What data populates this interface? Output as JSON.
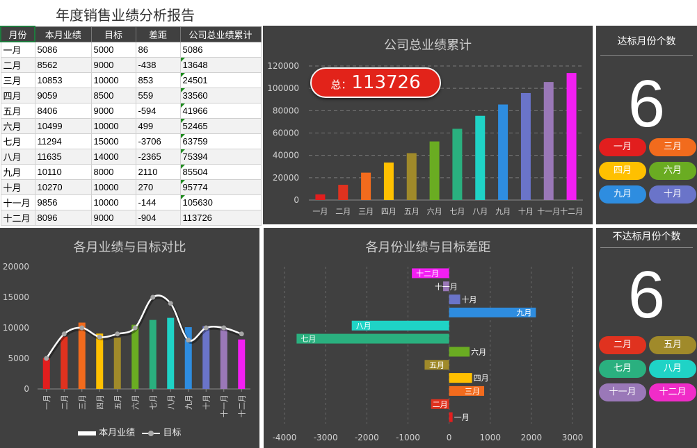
{
  "page_title": "年度销售业绩分析报告",
  "table": {
    "headers": [
      "月份",
      "本月业绩",
      "目标",
      "差距",
      "公司总业绩累计"
    ],
    "rows": [
      [
        "一月",
        "5086",
        "5000",
        "86",
        "5086"
      ],
      [
        "二月",
        "8562",
        "9000",
        "-438",
        "13648"
      ],
      [
        "三月",
        "10853",
        "10000",
        "853",
        "24501"
      ],
      [
        "四月",
        "9059",
        "8500",
        "559",
        "33560"
      ],
      [
        "五月",
        "8406",
        "9000",
        "-594",
        "41966"
      ],
      [
        "六月",
        "10499",
        "10000",
        "499",
        "52465"
      ],
      [
        "七月",
        "11294",
        "15000",
        "-3706",
        "63759"
      ],
      [
        "八月",
        "11635",
        "14000",
        "-2365",
        "75394"
      ],
      [
        "九月",
        "10110",
        "8000",
        "2110",
        "85504"
      ],
      [
        "十月",
        "10270",
        "10000",
        "270",
        "95774"
      ],
      [
        "十一月",
        "9856",
        "10000",
        "-144",
        "105630"
      ],
      [
        "十二月",
        "8096",
        "9000",
        "-904",
        "113726"
      ]
    ]
  },
  "cumulative_panel": {
    "title": "公司总业绩累计",
    "total_label": "总：",
    "total_value": "113726"
  },
  "compare_panel": {
    "title": "各月业绩与目标对比",
    "legend_bar": "本月业绩",
    "legend_line": "目标"
  },
  "gap_panel": {
    "title": "各月份业绩与目标差距"
  },
  "achieved": {
    "title": "达标月份个数",
    "count": "6",
    "months": [
      {
        "label": "一月",
        "color": "#e21e1e"
      },
      {
        "label": "三月",
        "color": "#f26b1d"
      },
      {
        "label": "四月",
        "color": "#ffc000"
      },
      {
        "label": "六月",
        "color": "#6aac22"
      },
      {
        "label": "九月",
        "color": "#2e8de0"
      },
      {
        "label": "十月",
        "color": "#6a74c9"
      }
    ]
  },
  "missed": {
    "title": "不达标月份个数",
    "count": "6",
    "months": [
      {
        "label": "二月",
        "color": "#e0321f"
      },
      {
        "label": "五月",
        "color": "#a08a2a"
      },
      {
        "label": "七月",
        "color": "#2ab07f"
      },
      {
        "label": "八月",
        "color": "#1fd3c6"
      },
      {
        "label": "十一月",
        "color": "#9a78b8"
      },
      {
        "label": "十二月",
        "color": "#f02cc8"
      }
    ]
  },
  "colors": [
    "#e21e1e",
    "#e0321f",
    "#f26b1d",
    "#ffc000",
    "#a08a2a",
    "#6aac22",
    "#2ab07f",
    "#1fd3c6",
    "#2e8de0",
    "#6a74c9",
    "#9a78b8",
    "#f21ff2"
  ],
  "chart_data": [
    {
      "type": "bar",
      "title": "公司总业绩累计",
      "categories": [
        "一月",
        "二月",
        "三月",
        "四月",
        "五月",
        "六月",
        "七月",
        "八月",
        "九月",
        "十月",
        "十一月",
        "十二月"
      ],
      "values": [
        5086,
        13648,
        24501,
        33560,
        41966,
        52465,
        63759,
        75394,
        85504,
        95774,
        105630,
        113726
      ],
      "y_ticks": [
        "0",
        "20000",
        "40000",
        "60000",
        "80000",
        "100000",
        "120000"
      ],
      "ylim": [
        0,
        120000
      ]
    },
    {
      "type": "bar",
      "title": "各月业绩与目标对比",
      "categories": [
        "一月",
        "二月",
        "三月",
        "四月",
        "五月",
        "六月",
        "七月",
        "八月",
        "九月",
        "十月",
        "十一月",
        "十二月"
      ],
      "series": [
        {
          "name": "本月业绩",
          "type": "bar",
          "values": [
            5086,
            8562,
            10853,
            9059,
            8406,
            10499,
            11294,
            11635,
            10110,
            10270,
            9856,
            8096
          ]
        },
        {
          "name": "目标",
          "type": "line",
          "values": [
            5000,
            9000,
            10000,
            8500,
            9000,
            10000,
            15000,
            14000,
            8000,
            10000,
            10000,
            9000
          ]
        }
      ],
      "y_ticks": [
        "0",
        "5000",
        "10000",
        "15000",
        "20000"
      ],
      "ylim": [
        0,
        20000
      ],
      "legend": "bottom"
    },
    {
      "type": "bar",
      "orientation": "horizontal",
      "title": "各月份业绩与目标差距",
      "categories": [
        "一月",
        "二月",
        "三月",
        "四月",
        "五月",
        "六月",
        "七月",
        "八月",
        "九月",
        "十月",
        "十一月",
        "十二月"
      ],
      "values": [
        86,
        -438,
        853,
        559,
        -594,
        499,
        -3706,
        -2365,
        2110,
        270,
        -144,
        -904
      ],
      "x_ticks": [
        "-4000",
        "-3000",
        "-2000",
        "-1000",
        "0",
        "1000",
        "2000",
        "3000"
      ],
      "xlim": [
        -4000,
        3000
      ]
    }
  ]
}
